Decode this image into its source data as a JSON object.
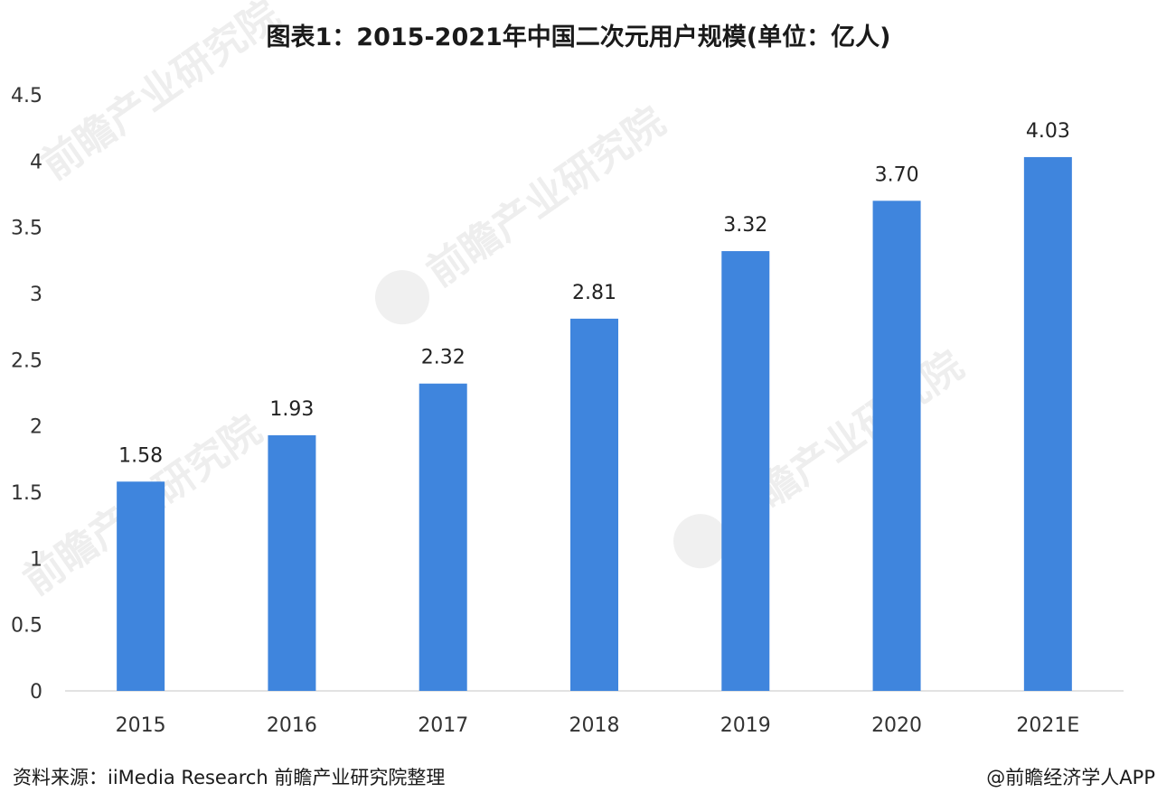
{
  "chart_data": {
    "type": "bar",
    "title": "图表1：2015-2021年中国二次元用户规模(单位：亿人)",
    "categories": [
      "2015",
      "2016",
      "2017",
      "2018",
      "2019",
      "2020",
      "2021E"
    ],
    "values": [
      1.58,
      1.93,
      2.32,
      2.81,
      3.32,
      3.7,
      4.03
    ],
    "value_labels": [
      "1.58",
      "1.93",
      "2.32",
      "2.81",
      "3.32",
      "3.70",
      "4.03"
    ],
    "ylim": [
      0,
      4.5
    ],
    "yticks": [
      "0",
      "0.5",
      "1",
      "1.5",
      "2",
      "2.5",
      "3",
      "3.5",
      "4",
      "4.5"
    ],
    "xlabel": "",
    "ylabel": "",
    "grid": false,
    "legend": "none",
    "bar_color": "#3f85dd"
  },
  "source": "资料来源：iiMedia Research 前瞻产业研究院整理",
  "credit": "@前瞻经济学人APP",
  "watermark": {
    "text": "前瞻产业研究院",
    "color": "#eeeeee"
  }
}
